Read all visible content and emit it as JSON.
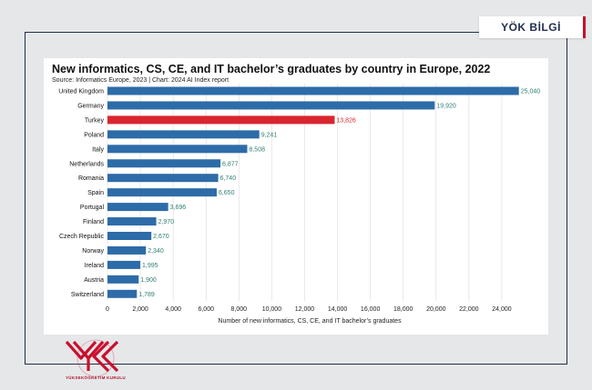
{
  "brand": {
    "tag": "YÖK BİLGİ",
    "logo_caption": "YÜKSEKÖĞRETİM KURULU"
  },
  "colors": {
    "bar": "#2d6ca8",
    "highlight": "#d9262e",
    "value_text": "#2f7d73",
    "grid": "#dcdcdc"
  },
  "chart_data": {
    "type": "bar",
    "orientation": "horizontal",
    "title": "New informatics, CS, CE, and IT bachelor’s graduates by country in Europe, 2022",
    "subtitle": "Source: Informatics Europe, 2023 | Chart: 2024 AI Index report",
    "xlabel": "Number of new informatics, CS, CE, and IT bachelor’s graduates",
    "ylabel": "",
    "xlim": [
      0,
      25500
    ],
    "xticks": [
      0,
      2000,
      4000,
      6000,
      8000,
      10000,
      12000,
      14000,
      16000,
      18000,
      20000,
      22000,
      24000
    ],
    "xtick_labels": [
      "0",
      "2,000",
      "4,000",
      "6,000",
      "8,000",
      "10,000",
      "12,000",
      "14,000",
      "16,000",
      "18,000",
      "20,000",
      "22,000",
      "24,000"
    ],
    "grid": true,
    "highlight": "Turkey",
    "categories": [
      "United Kingdom",
      "Germany",
      "Turkey",
      "Poland",
      "Italy",
      "Netherlands",
      "Romania",
      "Spain",
      "Portugal",
      "Finland",
      "Czech Republic",
      "Norway",
      "Ireland",
      "Austria",
      "Switzerland"
    ],
    "values": [
      25040,
      19920,
      13826,
      9241,
      8508,
      6877,
      6740,
      6650,
      3696,
      2970,
      2670,
      2340,
      1995,
      1900,
      1789
    ],
    "value_labels": [
      "25,040",
      "19,920",
      "13,826",
      "9,241",
      "8,508",
      "6,877",
      "6,740",
      "6,650",
      "3,696",
      "2,970",
      "2,670",
      "2,340",
      "1,995",
      "1,900",
      "1,789"
    ]
  }
}
